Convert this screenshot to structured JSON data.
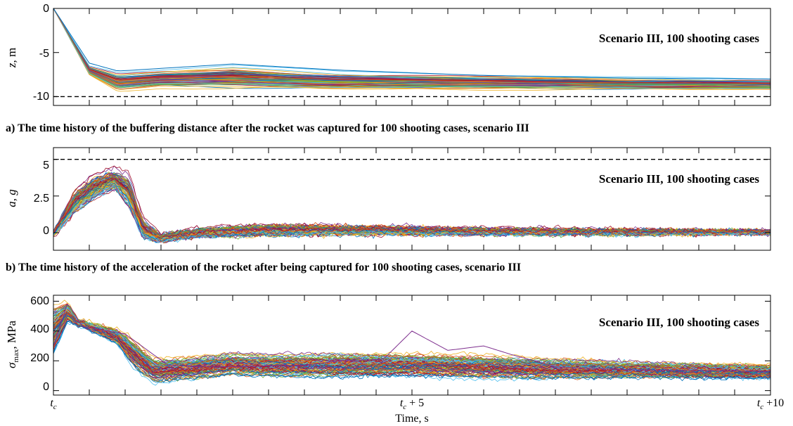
{
  "chart_data": [
    {
      "type": "line",
      "panel": "a",
      "annotation": "Scenario III, 100 shooting cases",
      "caption": "a) The time history of the buffering distance after the rocket was captured for 100 shooting cases,  scenario III",
      "ylabel_var": "z",
      "ylabel_unit": ", m",
      "xlim": [
        0,
        10
      ],
      "ylim": [
        -11,
        0
      ],
      "yticks": [
        0,
        -5,
        -10
      ],
      "ytick_labels": [
        "0",
        "-5",
        "-10"
      ],
      "reference_line": {
        "value": -10,
        "style": "dashed"
      },
      "series_count": 100,
      "envelope": {
        "x": [
          0,
          0.5,
          0.9,
          1.5,
          2.5,
          4,
          6,
          8,
          10
        ],
        "low": [
          0,
          -7.6,
          -9.5,
          -9.1,
          -9.3,
          -9.3,
          -9.3,
          -9.3,
          -9.3
        ],
        "high": [
          0,
          -6.5,
          -7.2,
          -6.9,
          -6.4,
          -7.2,
          -7.5,
          -7.8,
          -8.0
        ]
      },
      "outlier": {
        "x": [
          0,
          0.5,
          0.9,
          1.5,
          2.5,
          4,
          6,
          8,
          10
        ],
        "y": [
          0,
          -6.2,
          -7.1,
          -6.8,
          -6.3,
          -7.0,
          -7.6,
          -7.9,
          -8.0
        ]
      }
    },
    {
      "type": "line",
      "panel": "b",
      "annotation": "Scenario III, 100 shooting cases",
      "caption": "b) The time history of the acceleration of the rocket after being captured for 100 shooting cases,  scenario III",
      "ylabel_var": "a",
      "ylabel_sep": ", ",
      "ylabel_unit": "g",
      "xlim": [
        0,
        10
      ],
      "ylim": [
        -1.2,
        5.8
      ],
      "yticks": [
        0,
        2.5,
        5
      ],
      "ytick_labels": [
        "0",
        "2.5",
        "5"
      ],
      "reference_line": {
        "value": 5,
        "style": "dashed"
      },
      "series_count": 100,
      "envelope": {
        "x": [
          0,
          0.3,
          0.6,
          0.85,
          1.05,
          1.25,
          1.5,
          2,
          3,
          4,
          6,
          8,
          10
        ],
        "low": [
          -0.3,
          1.2,
          2.2,
          2.8,
          1.5,
          -0.6,
          -0.7,
          -0.4,
          -0.3,
          -0.2,
          -0.2,
          -0.2,
          -0.1
        ],
        "high": [
          0.2,
          3.2,
          4.3,
          4.6,
          4.3,
          1.2,
          0.0,
          0.4,
          0.7,
          0.6,
          0.4,
          0.3,
          0.2
        ]
      }
    },
    {
      "type": "line",
      "panel": "c",
      "annotation": "Scenario III, 100 shooting cases",
      "ylabel_var": "σ",
      "ylabel_sub": "max",
      "ylabel_unit": ", MPa",
      "xlabel": "Time, s",
      "xlim": [
        0,
        10
      ],
      "ylim": [
        -30,
        640
      ],
      "yticks": [
        0,
        200,
        400,
        600
      ],
      "ytick_labels": [
        "0",
        "200",
        "400",
        "600"
      ],
      "xticks": [
        0,
        5,
        10
      ],
      "xtick_labels": [
        {
          "base": "t",
          "sub": "c",
          "suffix": ""
        },
        {
          "base": "t",
          "sub": "c",
          "suffix": " + 5"
        },
        {
          "base": "t",
          "sub": "c",
          "suffix": " +10"
        }
      ],
      "series_count": 100,
      "envelope": {
        "x": [
          0,
          0.2,
          0.35,
          0.6,
          0.9,
          1.1,
          1.4,
          1.8,
          2.5,
          3,
          4,
          5,
          6,
          7,
          8,
          9,
          10
        ],
        "low": [
          200,
          450,
          430,
          380,
          300,
          150,
          40,
          60,
          90,
          80,
          70,
          80,
          70,
          70,
          75,
          70,
          70
        ],
        "high": [
          600,
          600,
          480,
          450,
          420,
          360,
          230,
          230,
          260,
          250,
          260,
          260,
          250,
          220,
          200,
          190,
          180
        ]
      },
      "outlier": {
        "x": [
          0,
          0.2,
          0.4,
          1,
          1.6,
          2.4,
          3.5,
          4,
          4.6,
          5,
          5.5,
          6,
          6.4,
          7,
          8,
          10
        ],
        "y": [
          300,
          590,
          430,
          380,
          170,
          160,
          170,
          200,
          210,
          400,
          270,
          300,
          240,
          160,
          140,
          130
        ]
      }
    }
  ]
}
